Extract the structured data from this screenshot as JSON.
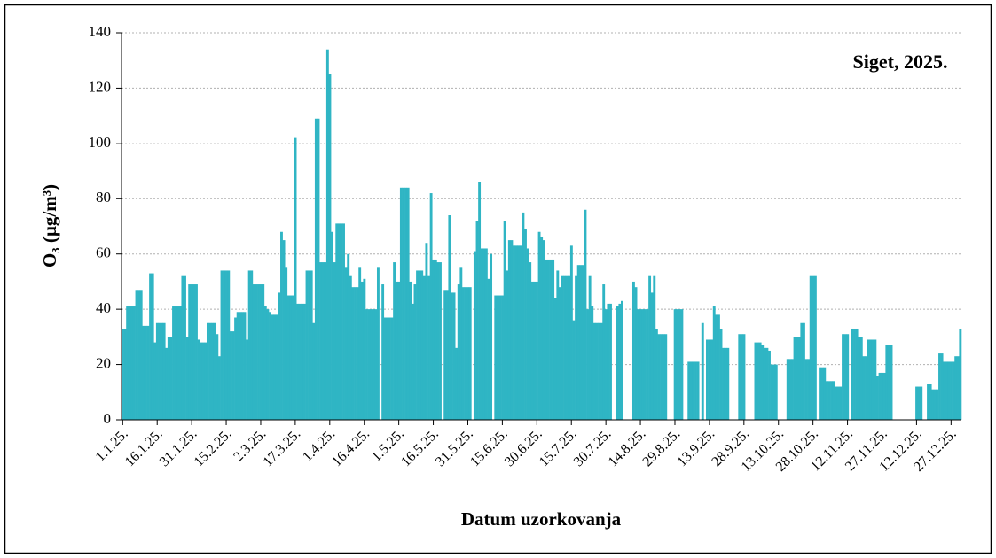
{
  "chart_data": {
    "type": "bar",
    "title": "Siget, 2025.",
    "xlabel": "Datum uzorkovanja",
    "ylabel": "O₃ (µg/m³)",
    "color": "#2fb5c4",
    "grid": true,
    "ylim": [
      0,
      140
    ],
    "yticks": [
      0,
      20,
      40,
      60,
      80,
      100,
      120,
      140
    ],
    "categories": [
      "1.1.25.",
      null,
      null,
      null,
      null,
      null,
      null,
      null,
      null,
      null,
      null,
      null,
      null,
      null,
      null,
      "16.1.25.",
      null,
      null,
      null,
      null,
      null,
      null,
      null,
      null,
      null,
      null,
      null,
      null,
      null,
      null,
      "31.1.25.",
      null,
      null,
      null,
      null,
      null,
      null,
      null,
      null,
      null,
      null,
      null,
      null,
      null,
      null,
      "15.2.25.",
      null,
      null,
      null,
      null,
      null,
      null,
      null,
      null,
      null,
      null,
      null,
      null,
      null,
      null,
      "2.3.25.",
      null,
      null,
      null,
      null,
      null,
      null,
      null,
      null,
      null,
      null,
      null,
      null,
      null,
      null,
      "17.3.25.",
      null,
      null,
      null,
      null,
      null,
      null,
      null,
      null,
      null,
      null,
      null,
      null,
      null,
      null,
      "1.4.25.",
      null,
      null,
      null,
      null,
      null,
      null,
      null,
      null,
      null,
      null,
      null,
      null,
      null,
      null,
      "16.4.25.",
      null,
      null,
      null,
      null,
      null,
      null,
      null,
      null,
      null,
      null,
      null,
      null,
      null,
      null,
      "1.5.25.",
      null,
      null,
      null,
      null,
      null,
      null,
      null,
      null,
      null,
      null,
      null,
      null,
      null,
      null,
      "16.5.25.",
      null,
      null,
      null,
      null,
      null,
      null,
      null,
      null,
      null,
      null,
      null,
      null,
      null,
      null,
      "31.5.25.",
      null,
      null,
      null,
      null,
      null,
      null,
      null,
      null,
      null,
      null,
      null,
      null,
      null,
      null,
      "15.6.25.",
      null,
      null,
      null,
      null,
      null,
      null,
      null,
      null,
      null,
      null,
      null,
      null,
      null,
      null,
      "30.6.25.",
      null,
      null,
      null,
      null,
      null,
      null,
      null,
      null,
      null,
      null,
      null,
      null,
      null,
      null,
      "15.7.25.",
      null,
      null,
      null,
      null,
      null,
      null,
      null,
      null,
      null,
      null,
      null,
      null,
      null,
      null,
      "30.7.25.",
      null,
      null,
      null,
      null,
      null,
      null,
      null,
      null,
      null,
      null,
      null,
      null,
      null,
      null,
      "14.8.25.",
      null,
      null,
      null,
      null,
      null,
      null,
      null,
      null,
      null,
      null,
      null,
      null,
      null,
      null,
      "29.8.25.",
      null,
      null,
      null,
      null,
      null,
      null,
      null,
      null,
      null,
      null,
      null,
      null,
      null,
      null,
      "13.9.25.",
      null,
      null,
      null,
      null,
      null,
      null,
      null,
      null,
      null,
      null,
      null,
      null,
      null,
      null,
      "28.9.25.",
      null,
      null,
      null,
      null,
      null,
      null,
      null,
      null,
      null,
      null,
      null,
      null,
      null,
      null,
      "13.10.25.",
      null,
      null,
      null,
      null,
      null,
      null,
      null,
      null,
      null,
      null,
      null,
      null,
      null,
      null,
      "28.10.25.",
      null,
      null,
      null,
      null,
      null,
      null,
      null,
      null,
      null,
      null,
      null,
      null,
      null,
      null,
      "12.11.25.",
      null,
      null,
      null,
      null,
      null,
      null,
      null,
      null,
      null,
      null,
      null,
      null,
      null,
      null,
      "27.11.25.",
      null,
      null,
      null,
      null,
      null,
      null,
      null,
      null,
      null,
      null,
      null,
      null,
      null,
      null,
      "12.12.25.",
      null,
      null,
      null,
      null,
      null,
      null,
      null,
      null,
      null,
      null,
      null,
      null,
      null,
      null,
      "27.12.25.",
      null,
      null,
      null,
      null
    ],
    "values": [
      33,
      33,
      41,
      41,
      41,
      41,
      47,
      47,
      47,
      34,
      34,
      34,
      53,
      53,
      28,
      35,
      35,
      35,
      35,
      26,
      30,
      30,
      41,
      41,
      41,
      41,
      52,
      52,
      30,
      49,
      49,
      49,
      49,
      29,
      28,
      28,
      28,
      35,
      35,
      35,
      35,
      31,
      23,
      54,
      54,
      54,
      54,
      32,
      32,
      37,
      39,
      39,
      39,
      39,
      29,
      54,
      54,
      49,
      49,
      49,
      49,
      49,
      41,
      40,
      39,
      38,
      38,
      38,
      46,
      68,
      65,
      55,
      45,
      45,
      45,
      102,
      42,
      42,
      42,
      42,
      54,
      54,
      54,
      35,
      109,
      109,
      57,
      57,
      57,
      134,
      125,
      68,
      57,
      71,
      71,
      71,
      71,
      55,
      60,
      52,
      48,
      48,
      48,
      55,
      50,
      51,
      40,
      40,
      40,
      40,
      40,
      55,
      null,
      49,
      37,
      37,
      37,
      37,
      57,
      50,
      50,
      84,
      84,
      84,
      84,
      50,
      42,
      49,
      54,
      54,
      54,
      52,
      64,
      52,
      82,
      58,
      58,
      57,
      57,
      null,
      47,
      47,
      74,
      46,
      46,
      26,
      49,
      55,
      48,
      48,
      48,
      48,
      null,
      61,
      72,
      86,
      62,
      62,
      62,
      51,
      60,
      null,
      45,
      45,
      45,
      45,
      72,
      54,
      65,
      65,
      63,
      63,
      63,
      63,
      75,
      69,
      62,
      57,
      50,
      50,
      50,
      68,
      66,
      65,
      58,
      58,
      58,
      58,
      44,
      54,
      48,
      52,
      52,
      52,
      52,
      63,
      36,
      52,
      56,
      56,
      56,
      76,
      40,
      52,
      41,
      35,
      35,
      35,
      35,
      49,
      40,
      42,
      42,
      null,
      null,
      41,
      42,
      43,
      null,
      null,
      null,
      null,
      50,
      48,
      40,
      40,
      40,
      40,
      40,
      52,
      46,
      52,
      33,
      31,
      31,
      31,
      31,
      null,
      null,
      null,
      40,
      40,
      40,
      40,
      null,
      null,
      21,
      21,
      21,
      21,
      21,
      null,
      35,
      null,
      29,
      29,
      29,
      41,
      38,
      38,
      33,
      26,
      26,
      26,
      null,
      null,
      null,
      null,
      31,
      31,
      31,
      null,
      null,
      null,
      null,
      28,
      28,
      28,
      27,
      26,
      26,
      25,
      20,
      20,
      20,
      null,
      null,
      null,
      null,
      22,
      22,
      22,
      30,
      30,
      30,
      35,
      35,
      22,
      22,
      52,
      52,
      52,
      null,
      19,
      19,
      19,
      14,
      14,
      14,
      14,
      12,
      12,
      12,
      31,
      31,
      31,
      null,
      33,
      33,
      33,
      30,
      30,
      23,
      23,
      29,
      29,
      29,
      29,
      16,
      17,
      17,
      17,
      27,
      27,
      27,
      null,
      null,
      null,
      null,
      null,
      null,
      null,
      null,
      null,
      null,
      12,
      12,
      12,
      null,
      null,
      13,
      13,
      11,
      11,
      11,
      24,
      24,
      21,
      21,
      21,
      21,
      21,
      23,
      23,
      33
    ]
  }
}
